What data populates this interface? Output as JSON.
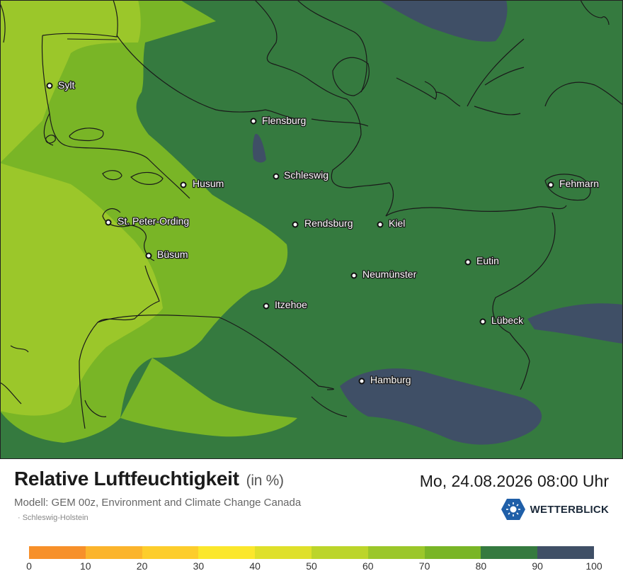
{
  "map": {
    "cities": [
      {
        "name": "Sylt"
      },
      {
        "name": "Flensburg"
      },
      {
        "name": "Schleswig"
      },
      {
        "name": "Husum"
      },
      {
        "name": "Fehmarn"
      },
      {
        "name": "St. Peter-Ording"
      },
      {
        "name": "Rendsburg"
      },
      {
        "name": "Kiel"
      },
      {
        "name": "Büsum"
      },
      {
        "name": "Eutin"
      },
      {
        "name": "Neumünster"
      },
      {
        "name": "Itzehoe"
      },
      {
        "name": "Lübeck"
      },
      {
        "name": "Hamburg"
      }
    ]
  },
  "footer": {
    "title": "Relative Luftfeuchtigkeit",
    "unit": "(in %)",
    "datetime": "Mo, 24.08.2026 08:00 Uhr",
    "model": "Modell: GEM 00z, Environment and Climate Change Canada",
    "region": "· Schleswig-Holstein",
    "brand": "WETTERBLICK"
  },
  "legend": {
    "colors": [
      "#f7902a",
      "#fbb42c",
      "#fdcd2c",
      "#fbe72c",
      "#dfe02a",
      "#bcd52a",
      "#9bc72a",
      "#79b526",
      "#357a3f",
      "#3f4f66"
    ],
    "ticks": [
      "0",
      "10",
      "20",
      "30",
      "40",
      "50",
      "60",
      "70",
      "80",
      "90",
      "100"
    ]
  }
}
